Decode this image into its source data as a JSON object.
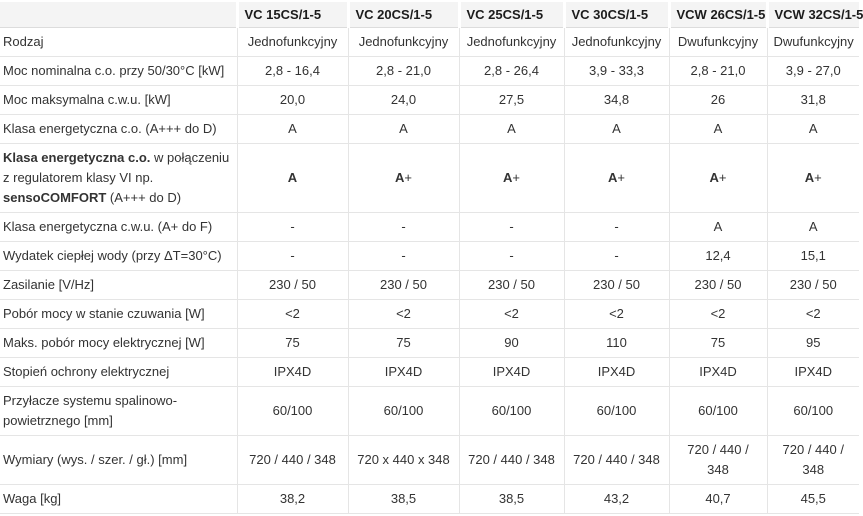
{
  "colors": {
    "header_bg": "#f4f4f4",
    "header_border_bottom": "#dcdcdc",
    "cell_border": "#e5e5e5",
    "text": "#333333"
  },
  "table": {
    "corner_label": "",
    "columns": [
      "VC 15CS/1-5",
      "VC 20CS/1-5",
      "VC 25CS/1-5",
      "VC 30CS/1-5",
      "VCW 26CS/1-5",
      "VCW 32CS/1-5"
    ],
    "rows": [
      {
        "label": "Rodzaj",
        "values": [
          "Jednofunkcyjny",
          "Jednofunkcyjny",
          "Jednofunkcyjny",
          "Jednofunkcyjny",
          "Dwufunkcyjny",
          "Dwufunkcyjny"
        ]
      },
      {
        "label": "Moc nominalna c.o. przy 50/30°C [kW]",
        "values": [
          "2,8 - 16,4",
          "2,8 - 21,0",
          "2,8 - 26,4",
          "3,9 - 33,3",
          "2,8 - 21,0",
          "3,9 - 27,0"
        ]
      },
      {
        "label": "Moc maksymalna c.w.u. [kW]",
        "values": [
          "20,0",
          "24,0",
          "27,5",
          "34,8",
          "26",
          "31,8"
        ]
      },
      {
        "label": "Klasa energetyczna c.o. (A+++ do D)",
        "values": [
          "A",
          "A",
          "A",
          "A",
          "A",
          "A"
        ]
      },
      {
        "label_segments": [
          {
            "text": "Klasa energetyczna c.o.",
            "bold": true
          },
          {
            "text": " w połączeniu z regulatorem klasy VI np. ",
            "bold": false
          },
          {
            "text": "sensoCOMFORT",
            "bold": true
          },
          {
            "text": " (A+++ do D)",
            "bold": false
          }
        ],
        "bold_values": true,
        "values": [
          "A",
          "A+",
          "A+",
          "A+",
          "A+",
          "A+"
        ]
      },
      {
        "label": "Klasa energetyczna c.w.u. (A+ do F)",
        "values": [
          "-",
          "-",
          "-",
          "-",
          "A",
          "A"
        ]
      },
      {
        "label": "Wydatek ciepłej wody (przy ΔT=30°C)",
        "values": [
          "-",
          "-",
          "-",
          "-",
          "12,4",
          "15,1"
        ]
      },
      {
        "label": "Zasilanie [V/Hz]",
        "values": [
          "230 / 50",
          "230 / 50",
          "230 / 50",
          "230 / 50",
          "230 / 50",
          "230 / 50"
        ]
      },
      {
        "label": "Pobór mocy w stanie czuwania [W]",
        "values": [
          "<2",
          "<2",
          "<2",
          "<2",
          "<2",
          "<2"
        ]
      },
      {
        "label": "Maks. pobór mocy elektrycznej [W]",
        "values": [
          "75",
          "75",
          "90",
          "110",
          "75",
          "95"
        ]
      },
      {
        "label": "Stopień ochrony elektrycznej",
        "values": [
          "IPX4D",
          "IPX4D",
          "IPX4D",
          "IPX4D",
          "IPX4D",
          "IPX4D"
        ]
      },
      {
        "label": "Przyłacze systemu spalinowo-powietrznego [mm]",
        "values": [
          "60/100",
          "60/100",
          "60/100",
          "60/100",
          "60/100",
          "60/100"
        ]
      },
      {
        "label": "Wymiary (wys. / szer. / gł.) [mm]",
        "values": [
          "720 / 440 / 348",
          "720 x 440 x 348",
          "720 / 440 / 348",
          "720 / 440 / 348",
          "720 / 440 / 348",
          "720 / 440 / 348"
        ]
      },
      {
        "label": "Waga [kg]",
        "values": [
          "38,2",
          "38,5",
          "38,5",
          "43,2",
          "40,7",
          "45,5"
        ]
      }
    ]
  }
}
